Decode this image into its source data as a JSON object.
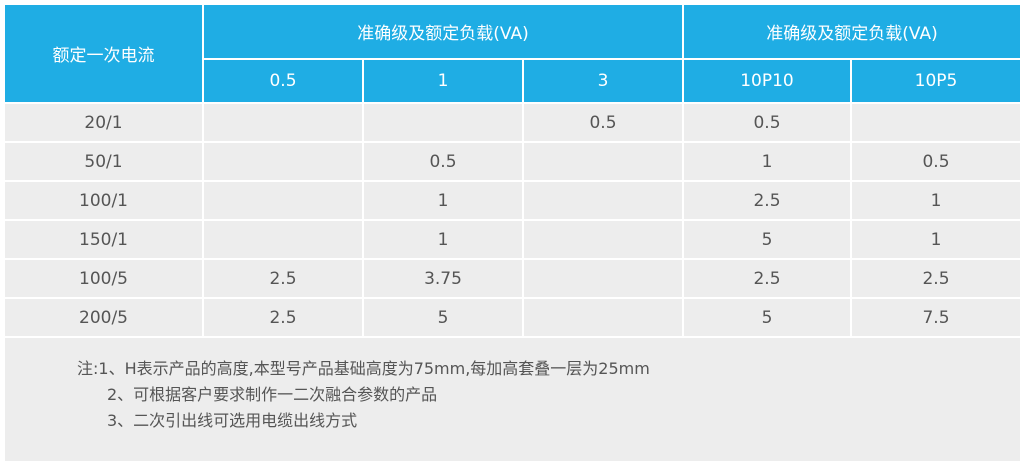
{
  "header": {
    "row_label": "额定一次电流",
    "group1": "准确级及额定负载(VA)",
    "group2": "准确级及额定负载(VA)",
    "columns": [
      "0.5",
      "1",
      "3",
      "10P10",
      "10P5"
    ]
  },
  "rows": [
    {
      "current": "20/1",
      "values": [
        "",
        "",
        "0.5",
        "0.5",
        ""
      ]
    },
    {
      "current": "50/1",
      "values": [
        "",
        "0.5",
        "",
        "1",
        "0.5"
      ]
    },
    {
      "current": "100/1",
      "values": [
        "",
        "1",
        "",
        "2.5",
        "1"
      ]
    },
    {
      "current": "150/1",
      "values": [
        "",
        "1",
        "",
        "5",
        "1"
      ]
    },
    {
      "current": "100/5",
      "values": [
        "2.5",
        "3.75",
        "",
        "2.5",
        "2.5"
      ]
    },
    {
      "current": "200/5",
      "values": [
        "2.5",
        "5",
        "",
        "5",
        "7.5"
      ]
    }
  ],
  "notes": [
    "注:1、H表示产品的高度,本型号产品基础高度为75mm,每加高套叠一层为25mm",
    "2、可根据客户要求制作一二次融合参数的产品",
    "3、二次引出线可选用电缆出线方式"
  ],
  "colors": {
    "header_bg": "#1fade4",
    "cell_bg": "#ededed"
  }
}
